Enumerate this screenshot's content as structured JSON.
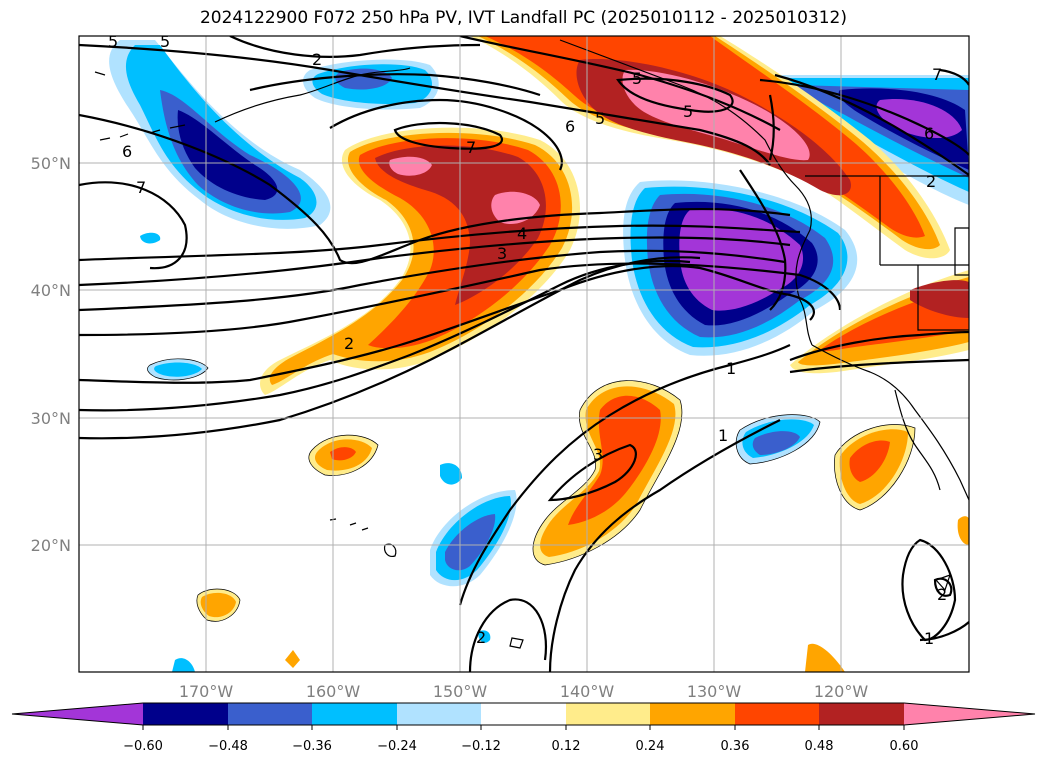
{
  "title": "2024122900 F072 250 hPa PV, IVT Landfall PC (2025010112 - 2025010312)",
  "map": {
    "lon_ticks": [
      "170°W",
      "160°W",
      "150°W",
      "140°W",
      "130°W",
      "120°W"
    ],
    "lat_ticks": [
      "50°N",
      "40°N",
      "30°N",
      "20°N"
    ],
    "contour_labels": [
      "5",
      "5",
      "2",
      "5",
      "6",
      "7",
      "7",
      "6",
      "3",
      "4",
      "3",
      "2",
      "2",
      "1",
      "1",
      "6",
      "2",
      "1",
      "2",
      "7",
      "5",
      "5"
    ]
  },
  "colorbar": {
    "colors": [
      "#a335d8",
      "#00008b",
      "#3a5fcd",
      "#00bfff",
      "#b0e2ff",
      "#ffffff",
      "#ffec8b",
      "#ffa500",
      "#ff4500",
      "#b22222",
      "#ff82ab"
    ],
    "labels": [
      "−0.60",
      "−0.48",
      "−0.36",
      "−0.24",
      "−0.12",
      "0.12",
      "0.24",
      "0.36",
      "0.48",
      "0.60"
    ]
  }
}
